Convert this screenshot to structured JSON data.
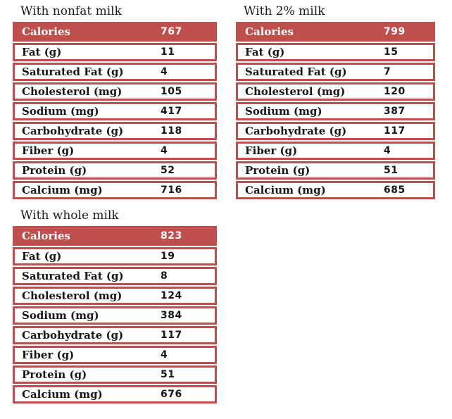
{
  "accent_color": "#bf4f4d",
  "chart_data": [
    {
      "type": "table",
      "title": "With nonfat milk",
      "header_row": {
        "label": "Calories",
        "value": "767"
      },
      "rows": [
        {
          "label": "Fat (g)",
          "value": "11"
        },
        {
          "label": "Saturated Fat (g)",
          "value": "4"
        },
        {
          "label": "Cholesterol (mg)",
          "value": "105"
        },
        {
          "label": "Sodium (mg)",
          "value": "417"
        },
        {
          "label": "Carbohydrate (g)",
          "value": "118"
        },
        {
          "label": "Fiber (g)",
          "value": "4"
        },
        {
          "label": "Protein (g)",
          "value": "52"
        },
        {
          "label": "Calcium (mg)",
          "value": "716"
        }
      ]
    },
    {
      "type": "table",
      "title": "With 2% milk",
      "header_row": {
        "label": "Calories",
        "value": "799"
      },
      "rows": [
        {
          "label": "Fat (g)",
          "value": "15"
        },
        {
          "label": "Saturated Fat (g)",
          "value": "7"
        },
        {
          "label": "Cholesterol (mg)",
          "value": "120"
        },
        {
          "label": "Sodium (mg)",
          "value": "387"
        },
        {
          "label": "Carbohydrate (g)",
          "value": "117"
        },
        {
          "label": "Fiber (g)",
          "value": "4"
        },
        {
          "label": "Protein (g)",
          "value": "51"
        },
        {
          "label": "Calcium (mg)",
          "value": "685"
        }
      ]
    },
    {
      "type": "table",
      "title": "With whole milk",
      "header_row": {
        "label": "Calories",
        "value": "823"
      },
      "rows": [
        {
          "label": "Fat (g)",
          "value": "19"
        },
        {
          "label": "Saturated Fat (g)",
          "value": "8"
        },
        {
          "label": "Cholesterol (mg)",
          "value": "124"
        },
        {
          "label": "Sodium (mg)",
          "value": "384"
        },
        {
          "label": "Carbohydrate (g)",
          "value": "117"
        },
        {
          "label": "Fiber (g)",
          "value": "4"
        },
        {
          "label": "Protein (g)",
          "value": "51"
        },
        {
          "label": "Calcium (mg)",
          "value": "676"
        }
      ]
    }
  ]
}
